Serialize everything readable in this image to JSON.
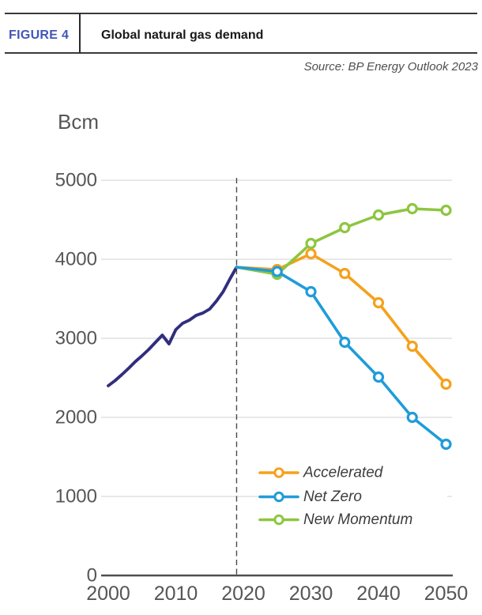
{
  "header": {
    "figure_label": "FIGURE 4",
    "title": "Global natural gas demand",
    "source": "Source: BP Energy Outlook 2023"
  },
  "chart_data": {
    "type": "line",
    "title": "Global natural gas demand",
    "unit_label": "Bcm",
    "xlabel": "",
    "ylabel": "Bcm",
    "xlim": [
      2000,
      2050
    ],
    "ylim": [
      0,
      5000
    ],
    "x_ticks": [
      2000,
      2010,
      2020,
      2030,
      2040,
      2050
    ],
    "y_ticks": [
      0,
      1000,
      2000,
      3000,
      4000,
      5000
    ],
    "grid": "horizontal",
    "history_divider_year": 2019,
    "legend_position": "inside-bottom-right",
    "series": [
      {
        "name": "History",
        "color": "#312E7D",
        "markers": false,
        "in_legend": false,
        "points": [
          [
            2000,
            2400
          ],
          [
            2001,
            2465
          ],
          [
            2002,
            2540
          ],
          [
            2003,
            2620
          ],
          [
            2004,
            2705
          ],
          [
            2005,
            2780
          ],
          [
            2006,
            2860
          ],
          [
            2007,
            2950
          ],
          [
            2008,
            3040
          ],
          [
            2009,
            2930
          ],
          [
            2010,
            3110
          ],
          [
            2011,
            3190
          ],
          [
            2012,
            3230
          ],
          [
            2013,
            3290
          ],
          [
            2014,
            3320
          ],
          [
            2015,
            3370
          ],
          [
            2016,
            3470
          ],
          [
            2017,
            3590
          ],
          [
            2018,
            3750
          ],
          [
            2019,
            3900
          ]
        ]
      },
      {
        "name": "Accelerated",
        "color": "#F5A11C",
        "markers": true,
        "in_legend": true,
        "points": [
          [
            2019,
            3900
          ],
          [
            2025,
            3870
          ],
          [
            2030,
            4070
          ],
          [
            2035,
            3820
          ],
          [
            2040,
            3450
          ],
          [
            2045,
            2900
          ],
          [
            2050,
            2420
          ]
        ]
      },
      {
        "name": "New Momentum",
        "color": "#8DC63F",
        "markers": true,
        "in_legend": true,
        "points": [
          [
            2019,
            3900
          ],
          [
            2025,
            3810
          ],
          [
            2030,
            4200
          ],
          [
            2035,
            4400
          ],
          [
            2040,
            4560
          ],
          [
            2045,
            4640
          ],
          [
            2050,
            4620
          ]
        ]
      },
      {
        "name": "Net Zero",
        "color": "#1F9CD9",
        "markers": true,
        "in_legend": true,
        "points": [
          [
            2019,
            3900
          ],
          [
            2025,
            3845
          ],
          [
            2030,
            3590
          ],
          [
            2035,
            2950
          ],
          [
            2040,
            2510
          ],
          [
            2045,
            2000
          ],
          [
            2050,
            1660
          ]
        ]
      }
    ],
    "legend_order": [
      "Accelerated",
      "Net Zero",
      "New Momentum"
    ]
  },
  "colors": {
    "figure_label": "#4355B8",
    "axis": "#4f4f4f",
    "tick_text": "#565656",
    "gridline": "#D9D9D9",
    "divider_dash": "#4a4a4a",
    "legend_text": "#3D3D3D",
    "marker_fill": "#FFFFFF"
  }
}
